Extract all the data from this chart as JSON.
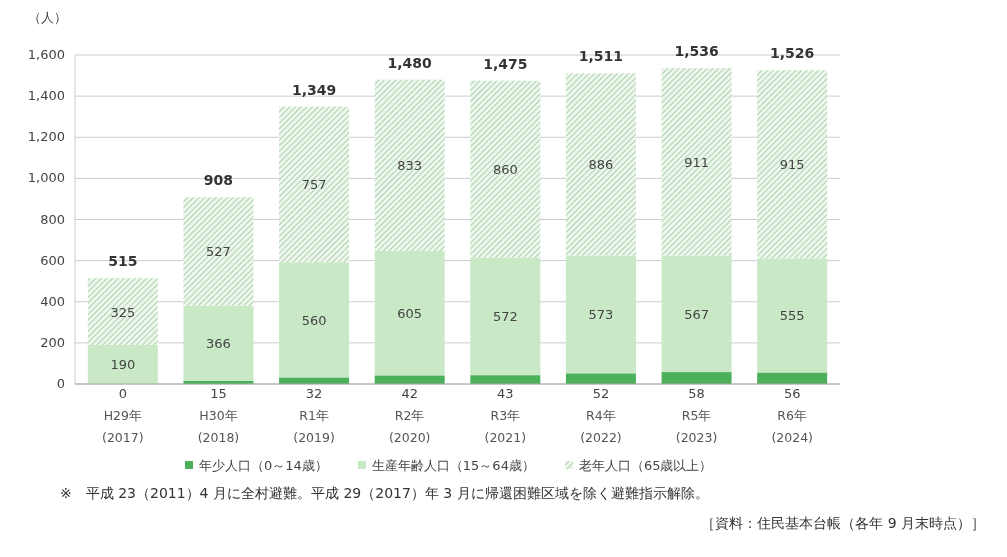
{
  "chart_data": {
    "type": "bar",
    "stacked": true,
    "ylabel": "（人）",
    "categories": [
      "H29年\n(2017)",
      "H30年\n(2018)",
      "R1年\n(2019)",
      "R2年\n(2020)",
      "R3年\n(2021)",
      "R4年\n(2022)",
      "R5年\n(2023)",
      "R6年\n(2024)"
    ],
    "series": [
      {
        "name": "年少人口（0～14歳）",
        "color": "#4caf5a",
        "values": [
          0,
          15,
          32,
          42,
          43,
          52,
          58,
          56
        ]
      },
      {
        "name": "生産年齢人口（15～64歳）",
        "color": "#c8e8c6",
        "values": [
          190,
          366,
          560,
          605,
          572,
          573,
          567,
          555
        ]
      },
      {
        "name": "老年人口（65歳以上）",
        "color": "#9cc89a",
        "values": [
          325,
          527,
          757,
          833,
          860,
          886,
          911,
          915
        ]
      }
    ],
    "totals": [
      "515",
      "908",
      "1,349",
      "1,480",
      "1,475",
      "1,511",
      "1,536",
      "1,526"
    ],
    "data_labels": true,
    "ylim": [
      0,
      1600
    ],
    "yticks": [
      0,
      200,
      400,
      600,
      800,
      {
        "value": 1000,
        "label": "1,000"
      },
      {
        "value": 1200,
        "label": "1,200"
      },
      {
        "value": 1400,
        "label": "1,400"
      },
      {
        "value": 1600,
        "label": "1,600"
      }
    ],
    "grid": "y",
    "legend": "bottom",
    "annotations": [
      "※　平成 23（2011）4 月に全村避難。平成 29（2017）年 3 月に帰還困難区域を除く避難指示解除。",
      "［資料：住民基本台帳（各年 9 月末時点）］"
    ]
  }
}
